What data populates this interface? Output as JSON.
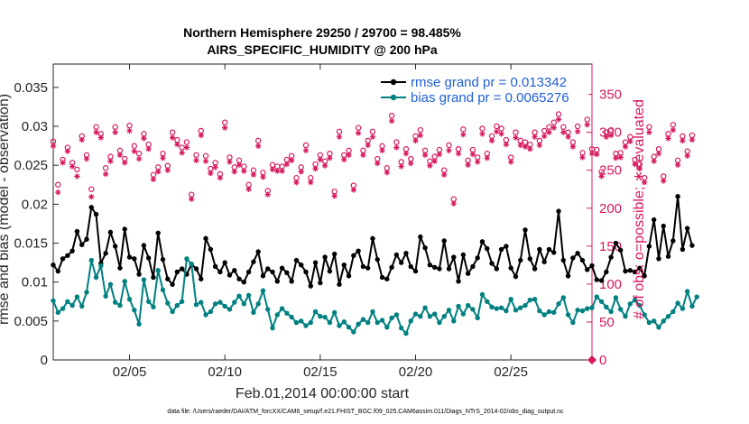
{
  "chart_data": {
    "type": "line",
    "title_line1": "Northern Hemisphere 29250 / 29700 = 98.485%",
    "title_line2": "AIRS_SPECIFIC_HUMIDITY @ 200 hPa",
    "xlabel": "Feb.01,2014 00:00:00 start",
    "ylabel_left": "rmse and bias (model - observation)",
    "ylabel_right": "# of obs: o=possible; ∗=evaluated",
    "x_range": [
      1,
      29.25
    ],
    "x_ticks": [
      5,
      10,
      15,
      20,
      25
    ],
    "x_tick_labels": [
      "02/05",
      "02/10",
      "02/15",
      "02/20",
      "02/25"
    ],
    "ylim_left": [
      0,
      0.038
    ],
    "yticks_left": [
      0,
      0.005,
      0.01,
      0.015,
      0.02,
      0.025,
      0.03,
      0.035
    ],
    "ytick_labels_left": [
      "0",
      "0.005",
      "0.01",
      "0.015",
      "0.02",
      "0.025",
      "0.03",
      "0.035"
    ],
    "ylim_right": [
      0,
      390
    ],
    "yticks_right": [
      0,
      50,
      100,
      150,
      200,
      250,
      300,
      350
    ],
    "ytick_labels_right": [
      "0",
      "50",
      "100",
      "150",
      "200",
      "250",
      "300",
      "350"
    ],
    "grid": false,
    "legend_position": "top-right",
    "colors": {
      "rmse": "#000000",
      "bias": "#008080",
      "obs": "#d6185e",
      "legend_text": "#1f5fd6"
    },
    "series": [
      {
        "name": "rmse grand pr = 0.013342",
        "axis": "left",
        "marker": "filled-circle",
        "start": 1.0,
        "step": 0.25,
        "values": [
          0.0122,
          0.0114,
          0.013,
          0.0134,
          0.014,
          0.0165,
          0.0148,
          0.0155,
          0.0196,
          0.0187,
          0.0124,
          0.0137,
          0.0164,
          0.0146,
          0.0118,
          0.0168,
          0.0132,
          0.013,
          0.011,
          0.0147,
          0.0131,
          0.0106,
          0.0163,
          0.0129,
          0.0104,
          0.0097,
          0.0113,
          0.0117,
          0.011,
          0.0123,
          0.0117,
          0.0104,
          0.0156,
          0.0142,
          0.012,
          0.0113,
          0.0125,
          0.0109,
          0.0115,
          0.0104,
          0.01,
          0.0113,
          0.0126,
          0.0139,
          0.0108,
          0.0117,
          0.0113,
          0.0101,
          0.0118,
          0.0112,
          0.0101,
          0.0128,
          0.0122,
          0.0113,
          0.0095,
          0.0125,
          0.0099,
          0.0132,
          0.0114,
          0.0136,
          0.0097,
          0.0122,
          0.0108,
          0.0134,
          0.014,
          0.012,
          0.0118,
          0.0156,
          0.0129,
          0.0106,
          0.0104,
          0.0119,
          0.0135,
          0.0125,
          0.0137,
          0.012,
          0.0114,
          0.0158,
          0.0144,
          0.0122,
          0.0119,
          0.0117,
          0.0153,
          0.0117,
          0.0132,
          0.0101,
          0.0135,
          0.0111,
          0.012,
          0.0131,
          0.0152,
          0.0143,
          0.0124,
          0.0117,
          0.0142,
          0.0146,
          0.0118,
          0.0107,
          0.0128,
          0.0167,
          0.013,
          0.0117,
          0.0142,
          0.0126,
          0.0142,
          0.0138,
          0.0191,
          0.0128,
          0.0108,
          0.0131,
          0.0137,
          0.0128,
          0.0116,
          0.0121,
          0.0103,
          0.0102,
          0.0113,
          0.0132,
          0.015,
          0.0141,
          0.0114,
          0.0115,
          0.0113,
          0.0118,
          0.0108,
          0.0146,
          0.018,
          0.013,
          0.0172,
          0.0133,
          0.0153,
          0.021,
          0.0142,
          0.0169,
          0.0147
        ]
      },
      {
        "name": "bias grand pr = 0.0065276",
        "axis": "left",
        "marker": "filled-circle",
        "start": 1.0,
        "step": 0.25,
        "values": [
          0.0076,
          0.0061,
          0.0066,
          0.0075,
          0.007,
          0.0081,
          0.0069,
          0.0087,
          0.0128,
          0.0106,
          0.0121,
          0.0082,
          0.0097,
          0.0074,
          0.007,
          0.0101,
          0.0078,
          0.0064,
          0.0046,
          0.0103,
          0.0075,
          0.0068,
          0.0115,
          0.009,
          0.0073,
          0.0062,
          0.007,
          0.0075,
          0.013,
          0.0123,
          0.0071,
          0.0074,
          0.0058,
          0.0062,
          0.0072,
          0.0074,
          0.0069,
          0.0065,
          0.0074,
          0.0082,
          0.0072,
          0.0083,
          0.0061,
          0.0072,
          0.0089,
          0.0065,
          0.0041,
          0.0058,
          0.0066,
          0.006,
          0.0055,
          0.0048,
          0.005,
          0.0044,
          0.0048,
          0.0062,
          0.0056,
          0.0055,
          0.0048,
          0.0061,
          0.0044,
          0.0049,
          0.0042,
          0.0036,
          0.0046,
          0.0052,
          0.0048,
          0.0062,
          0.0048,
          0.0051,
          0.0042,
          0.0054,
          0.0058,
          0.0041,
          0.0034,
          0.005,
          0.0059,
          0.0056,
          0.0067,
          0.0056,
          0.0059,
          0.0048,
          0.0056,
          0.0064,
          0.005,
          0.0069,
          0.0059,
          0.007,
          0.0065,
          0.0054,
          0.0084,
          0.0075,
          0.0068,
          0.0066,
          0.0067,
          0.0063,
          0.0078,
          0.0064,
          0.0067,
          0.007,
          0.0077,
          0.0078,
          0.0063,
          0.0058,
          0.0062,
          0.0061,
          0.0072,
          0.008,
          0.0058,
          0.0048,
          0.0064,
          0.0063,
          0.0066,
          0.0067,
          0.0081,
          0.0075,
          0.0068,
          0.0062,
          0.008,
          0.0065,
          0.0056,
          0.0072,
          0.0077,
          0.007,
          0.0058,
          0.0048,
          0.005,
          0.0042,
          0.005,
          0.0056,
          0.0062,
          0.0073,
          0.0066,
          0.0088,
          0.0069,
          0.0081
        ]
      },
      {
        "name": "possible",
        "axis": "right",
        "marker": "open-circle",
        "start": 1.0,
        "step": 0.25,
        "values": [
          288,
          231,
          264,
          280,
          260,
          251,
          295,
          270,
          225,
          307,
          298,
          253,
          268,
          307,
          276,
          265,
          309,
          282,
          272,
          298,
          284,
          244,
          254,
          272,
          256,
          300,
          290,
          280,
          287,
          218,
          270,
          302,
          269,
          252,
          260,
          245,
          313,
          267,
          254,
          263,
          255,
          231,
          250,
          289,
          247,
          223,
          257,
          255,
          255,
          264,
          269,
          240,
          254,
          283,
          240,
          258,
          270,
          262,
          272,
          222,
          301,
          270,
          276,
          230,
          306,
          276,
          289,
          301,
          265,
          282,
          253,
          322,
          287,
          261,
          278,
          265,
          295,
          303,
          276,
          262,
          268,
          277,
          250,
          283,
          212,
          278,
          304,
          263,
          277,
          267,
          305,
          272,
          295,
          308,
          305,
          290,
          267,
          300,
          289,
          287,
          284,
          300,
          289,
          302,
          307,
          313,
          324,
          307,
          300,
          287,
          308,
          273,
          317,
          278,
          277,
          248,
          300,
          303,
          272,
          273,
          287,
          294,
          264,
          258,
          240,
          307,
          268,
          278,
          242,
          298,
          310,
          263,
          295,
          275,
          296
        ]
      },
      {
        "name": "evaluated",
        "axis": "right",
        "marker": "asterisk",
        "start": 1.0,
        "step": 0.25,
        "values": [
          282,
          221,
          260,
          275,
          255,
          242,
          290,
          265,
          215,
          300,
          293,
          245,
          262,
          300,
          270,
          260,
          302,
          275,
          265,
          292,
          278,
          238,
          248,
          266,
          250,
          293,
          284,
          273,
          280,
          212,
          263,
          296,
          262,
          246,
          254,
          240,
          306,
          261,
          248,
          257,
          249,
          225,
          244,
          282,
          241,
          218,
          251,
          249,
          249,
          258,
          263,
          234,
          248,
          276,
          234,
          252,
          264,
          256,
          266,
          216,
          294,
          264,
          270,
          224,
          299,
          270,
          283,
          294,
          259,
          276,
          247,
          315,
          280,
          255,
          272,
          259,
          289,
          296,
          270,
          256,
          262,
          271,
          244,
          276,
          206,
          272,
          297,
          257,
          271,
          261,
          298,
          266,
          289,
          301,
          298,
          284,
          261,
          293,
          283,
          281,
          278,
          294,
          283,
          295,
          300,
          306,
          317,
          300,
          294,
          281,
          301,
          267,
          310,
          272,
          271,
          242,
          294,
          296,
          266,
          267,
          281,
          288,
          258,
          252,
          234,
          300,
          262,
          272,
          236,
          292,
          303,
          257,
          289,
          269,
          290
        ]
      }
    ]
  },
  "footer_text": "data file: /Users/raeder/DAI/ATM_forcXX/CAM6_setup/f.e21.FHIST_BGC.f09_025.CAM6assim.011/Diags_NTrS_2014-02/obs_diag_output.nc"
}
